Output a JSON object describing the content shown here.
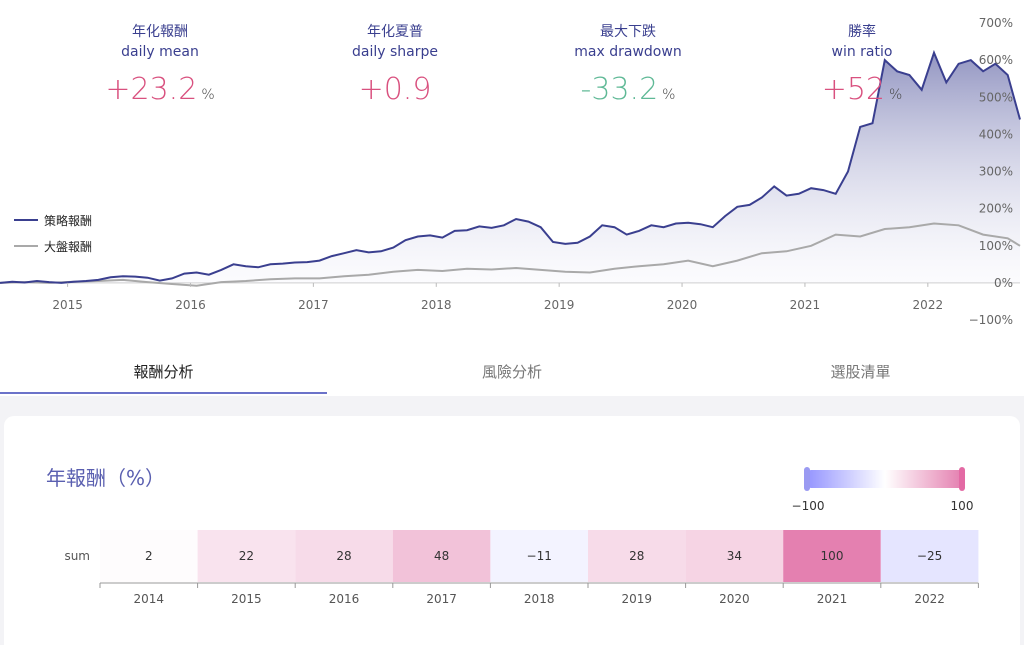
{
  "stats": [
    {
      "zh": "年化報酬",
      "en": "daily mean",
      "value": "+23.2",
      "unit": "%",
      "tone": "pos"
    },
    {
      "zh": "年化夏普",
      "en": "daily sharpe",
      "value": "+0.9",
      "unit": "",
      "tone": "pos"
    },
    {
      "zh": "最大下跌",
      "en": "max drawdown",
      "value": "-33.2",
      "unit": "%",
      "tone": "neg"
    },
    {
      "zh": "勝率",
      "en": "win ratio",
      "value": "+52",
      "unit": "%",
      "tone": "pos"
    }
  ],
  "tabs": [
    "報酬分析",
    "風險分析",
    "選股清單"
  ],
  "heatmap_title": "年報酬（%）",
  "colors": {
    "strategy": "#3a3f8f",
    "market": "#a9a9a9",
    "pos": "#d9517f",
    "neg": "#5fb996"
  },
  "chart_data": [
    {
      "type": "line",
      "x_ticks": [
        "2015",
        "2016",
        "2017",
        "2018",
        "2019",
        "2020",
        "2021",
        "2022"
      ],
      "y_ticks": [
        "700%",
        "600%",
        "500%",
        "400%",
        "300%",
        "200%",
        "100%",
        "0%",
        "−100%"
      ],
      "ylim": [
        -100,
        700
      ],
      "legend": "left",
      "series": [
        {
          "name": "策略報酬",
          "color": "#3a3f8f",
          "x": [
            2014.45,
            2014.55,
            2014.65,
            2014.75,
            2014.85,
            2014.95,
            2015.05,
            2015.15,
            2015.25,
            2015.35,
            2015.45,
            2015.55,
            2015.65,
            2015.75,
            2015.85,
            2015.95,
            2016.05,
            2016.15,
            2016.25,
            2016.35,
            2016.45,
            2016.55,
            2016.65,
            2016.75,
            2016.85,
            2016.95,
            2017.05,
            2017.15,
            2017.25,
            2017.35,
            2017.45,
            2017.55,
            2017.65,
            2017.75,
            2017.85,
            2017.95,
            2018.05,
            2018.15,
            2018.25,
            2018.35,
            2018.45,
            2018.55,
            2018.65,
            2018.75,
            2018.85,
            2018.95,
            2019.05,
            2019.15,
            2019.25,
            2019.35,
            2019.45,
            2019.55,
            2019.65,
            2019.75,
            2019.85,
            2019.95,
            2020.05,
            2020.15,
            2020.25,
            2020.35,
            2020.45,
            2020.55,
            2020.65,
            2020.75,
            2020.85,
            2020.95,
            2021.05,
            2021.15,
            2021.25,
            2021.35,
            2021.45,
            2021.55,
            2021.65,
            2021.75,
            2021.85,
            2021.95,
            2022.05,
            2022.15,
            2022.25,
            2022.35,
            2022.45,
            2022.55,
            2022.65,
            2022.75
          ],
          "y": [
            0,
            3,
            1,
            5,
            2,
            0,
            3,
            5,
            8,
            15,
            18,
            17,
            14,
            6,
            12,
            25,
            28,
            22,
            35,
            50,
            45,
            42,
            50,
            52,
            55,
            56,
            60,
            72,
            80,
            88,
            82,
            85,
            95,
            115,
            125,
            128,
            122,
            140,
            142,
            152,
            148,
            155,
            172,
            165,
            150,
            110,
            105,
            108,
            125,
            155,
            150,
            130,
            140,
            155,
            150,
            160,
            162,
            158,
            150,
            180,
            205,
            210,
            230,
            260,
            235,
            240,
            255,
            250,
            240,
            300,
            420,
            430,
            600,
            570,
            560,
            520,
            620,
            540,
            590,
            600,
            570,
            590,
            560,
            440
          ],
          "fill": true
        },
        {
          "name": "大盤報酬",
          "color": "#a9a9a9",
          "x": [
            2014.45,
            2014.65,
            2014.85,
            2015.05,
            2015.25,
            2015.45,
            2015.65,
            2015.85,
            2016.05,
            2016.25,
            2016.45,
            2016.65,
            2016.85,
            2017.05,
            2017.25,
            2017.45,
            2017.65,
            2017.85,
            2018.05,
            2018.25,
            2018.45,
            2018.65,
            2018.85,
            2019.05,
            2019.25,
            2019.45,
            2019.65,
            2019.85,
            2020.05,
            2020.25,
            2020.45,
            2020.65,
            2020.85,
            2021.05,
            2021.25,
            2021.45,
            2021.65,
            2021.85,
            2022.05,
            2022.25,
            2022.45,
            2022.65,
            2022.75
          ],
          "y": [
            0,
            2,
            0,
            3,
            5,
            8,
            2,
            -3,
            -8,
            2,
            5,
            10,
            12,
            12,
            18,
            22,
            30,
            35,
            32,
            38,
            36,
            40,
            35,
            30,
            28,
            38,
            45,
            50,
            60,
            45,
            60,
            80,
            85,
            100,
            130,
            125,
            145,
            150,
            160,
            155,
            130,
            120,
            100
          ],
          "fill": false
        }
      ]
    },
    {
      "type": "heatmap",
      "row_label": "sum",
      "categories": [
        "2014",
        "2015",
        "2016",
        "2017",
        "2018",
        "2019",
        "2020",
        "2021",
        "2022"
      ],
      "values": [
        2,
        22,
        28,
        48,
        -11,
        28,
        34,
        100,
        -25
      ],
      "labels": [
        "2",
        "22",
        "28",
        "48",
        "−11",
        "28",
        "34",
        "100",
        "−25"
      ],
      "range": [
        -100,
        100
      ],
      "range_labels": [
        "−100",
        "100"
      ]
    }
  ]
}
